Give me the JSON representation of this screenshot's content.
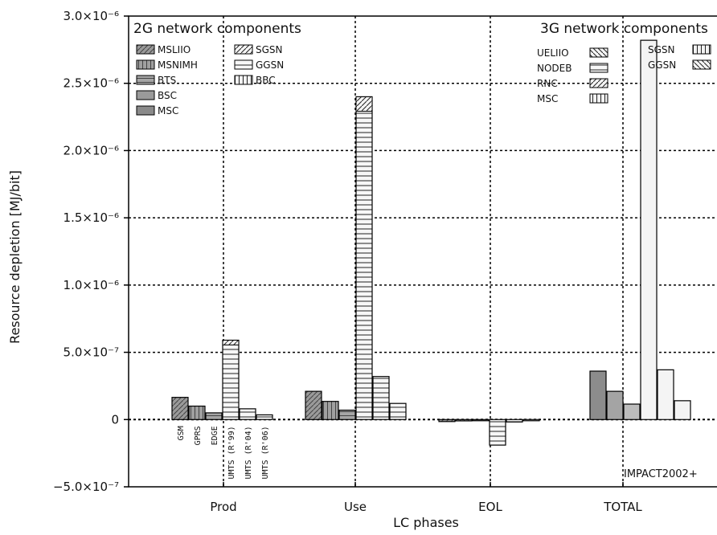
{
  "chart_data": {
    "type": "bar",
    "title": "",
    "xlabel": "LC phases",
    "ylabel": "Resource depletion [MJ/bit]",
    "ylim": [
      -5e-07,
      3e-06
    ],
    "y_ticks": [
      -5e-07,
      0,
      5e-07,
      1e-06,
      1.5e-06,
      2e-06,
      2.5e-06,
      3e-06
    ],
    "y_tick_labels": [
      "−5.0×10⁻⁷",
      "0",
      "5.0×10⁻⁷",
      "1.0×10⁻⁶",
      "1.5×10⁻⁶",
      "2.0×10⁻⁶",
      "2.5×10⁻⁶",
      "3.0×10⁻⁶"
    ],
    "categories": [
      "Prod",
      "Use",
      "EOL",
      "TOTAL"
    ],
    "technologies": [
      "GSM",
      "GPRS",
      "EDGE",
      "UMTS (R'99)",
      "UMTS (R'04)",
      "UMTS (R'06)"
    ],
    "values_by_phase": [
      {
        "phase": "Prod",
        "values": [
          1.65e-07,
          1e-07,
          5e-08,
          5.9e-07,
          8e-08,
          3.5e-08
        ]
      },
      {
        "phase": "Use",
        "values": [
          2.1e-07,
          1.35e-07,
          7e-08,
          2.4e-06,
          3.2e-07,
          1.2e-07
        ]
      },
      {
        "phase": "EOL",
        "values": [
          -1.5e-08,
          -1e-08,
          -5e-09,
          -1.9e-07,
          -1.8e-08,
          -8e-09
        ]
      },
      {
        "phase": "TOTAL",
        "values": [
          3.6e-07,
          2.1e-07,
          1.15e-07,
          2.82e-06,
          3.7e-07,
          1.4e-07
        ]
      }
    ],
    "legend_2g": {
      "title": "2G network components",
      "items": [
        "MSLIIO",
        "MSNIMH",
        "BTS",
        "BSC",
        "MSC",
        "SGSN",
        "GGSN",
        "BBC"
      ]
    },
    "legend_3g": {
      "title": "3G network components",
      "items": [
        "UELIIO",
        "NODEB",
        "RNC",
        "MSC",
        "SGSN",
        "GGSN"
      ]
    },
    "annotation": "IMPACT2002+",
    "grid": true,
    "colors": {
      "gsm": "#8c8c8c",
      "gprs": "#a8a8a8",
      "edge": "#c4c4c4",
      "umts": "#f2f2f2",
      "outline": "#000000"
    }
  }
}
